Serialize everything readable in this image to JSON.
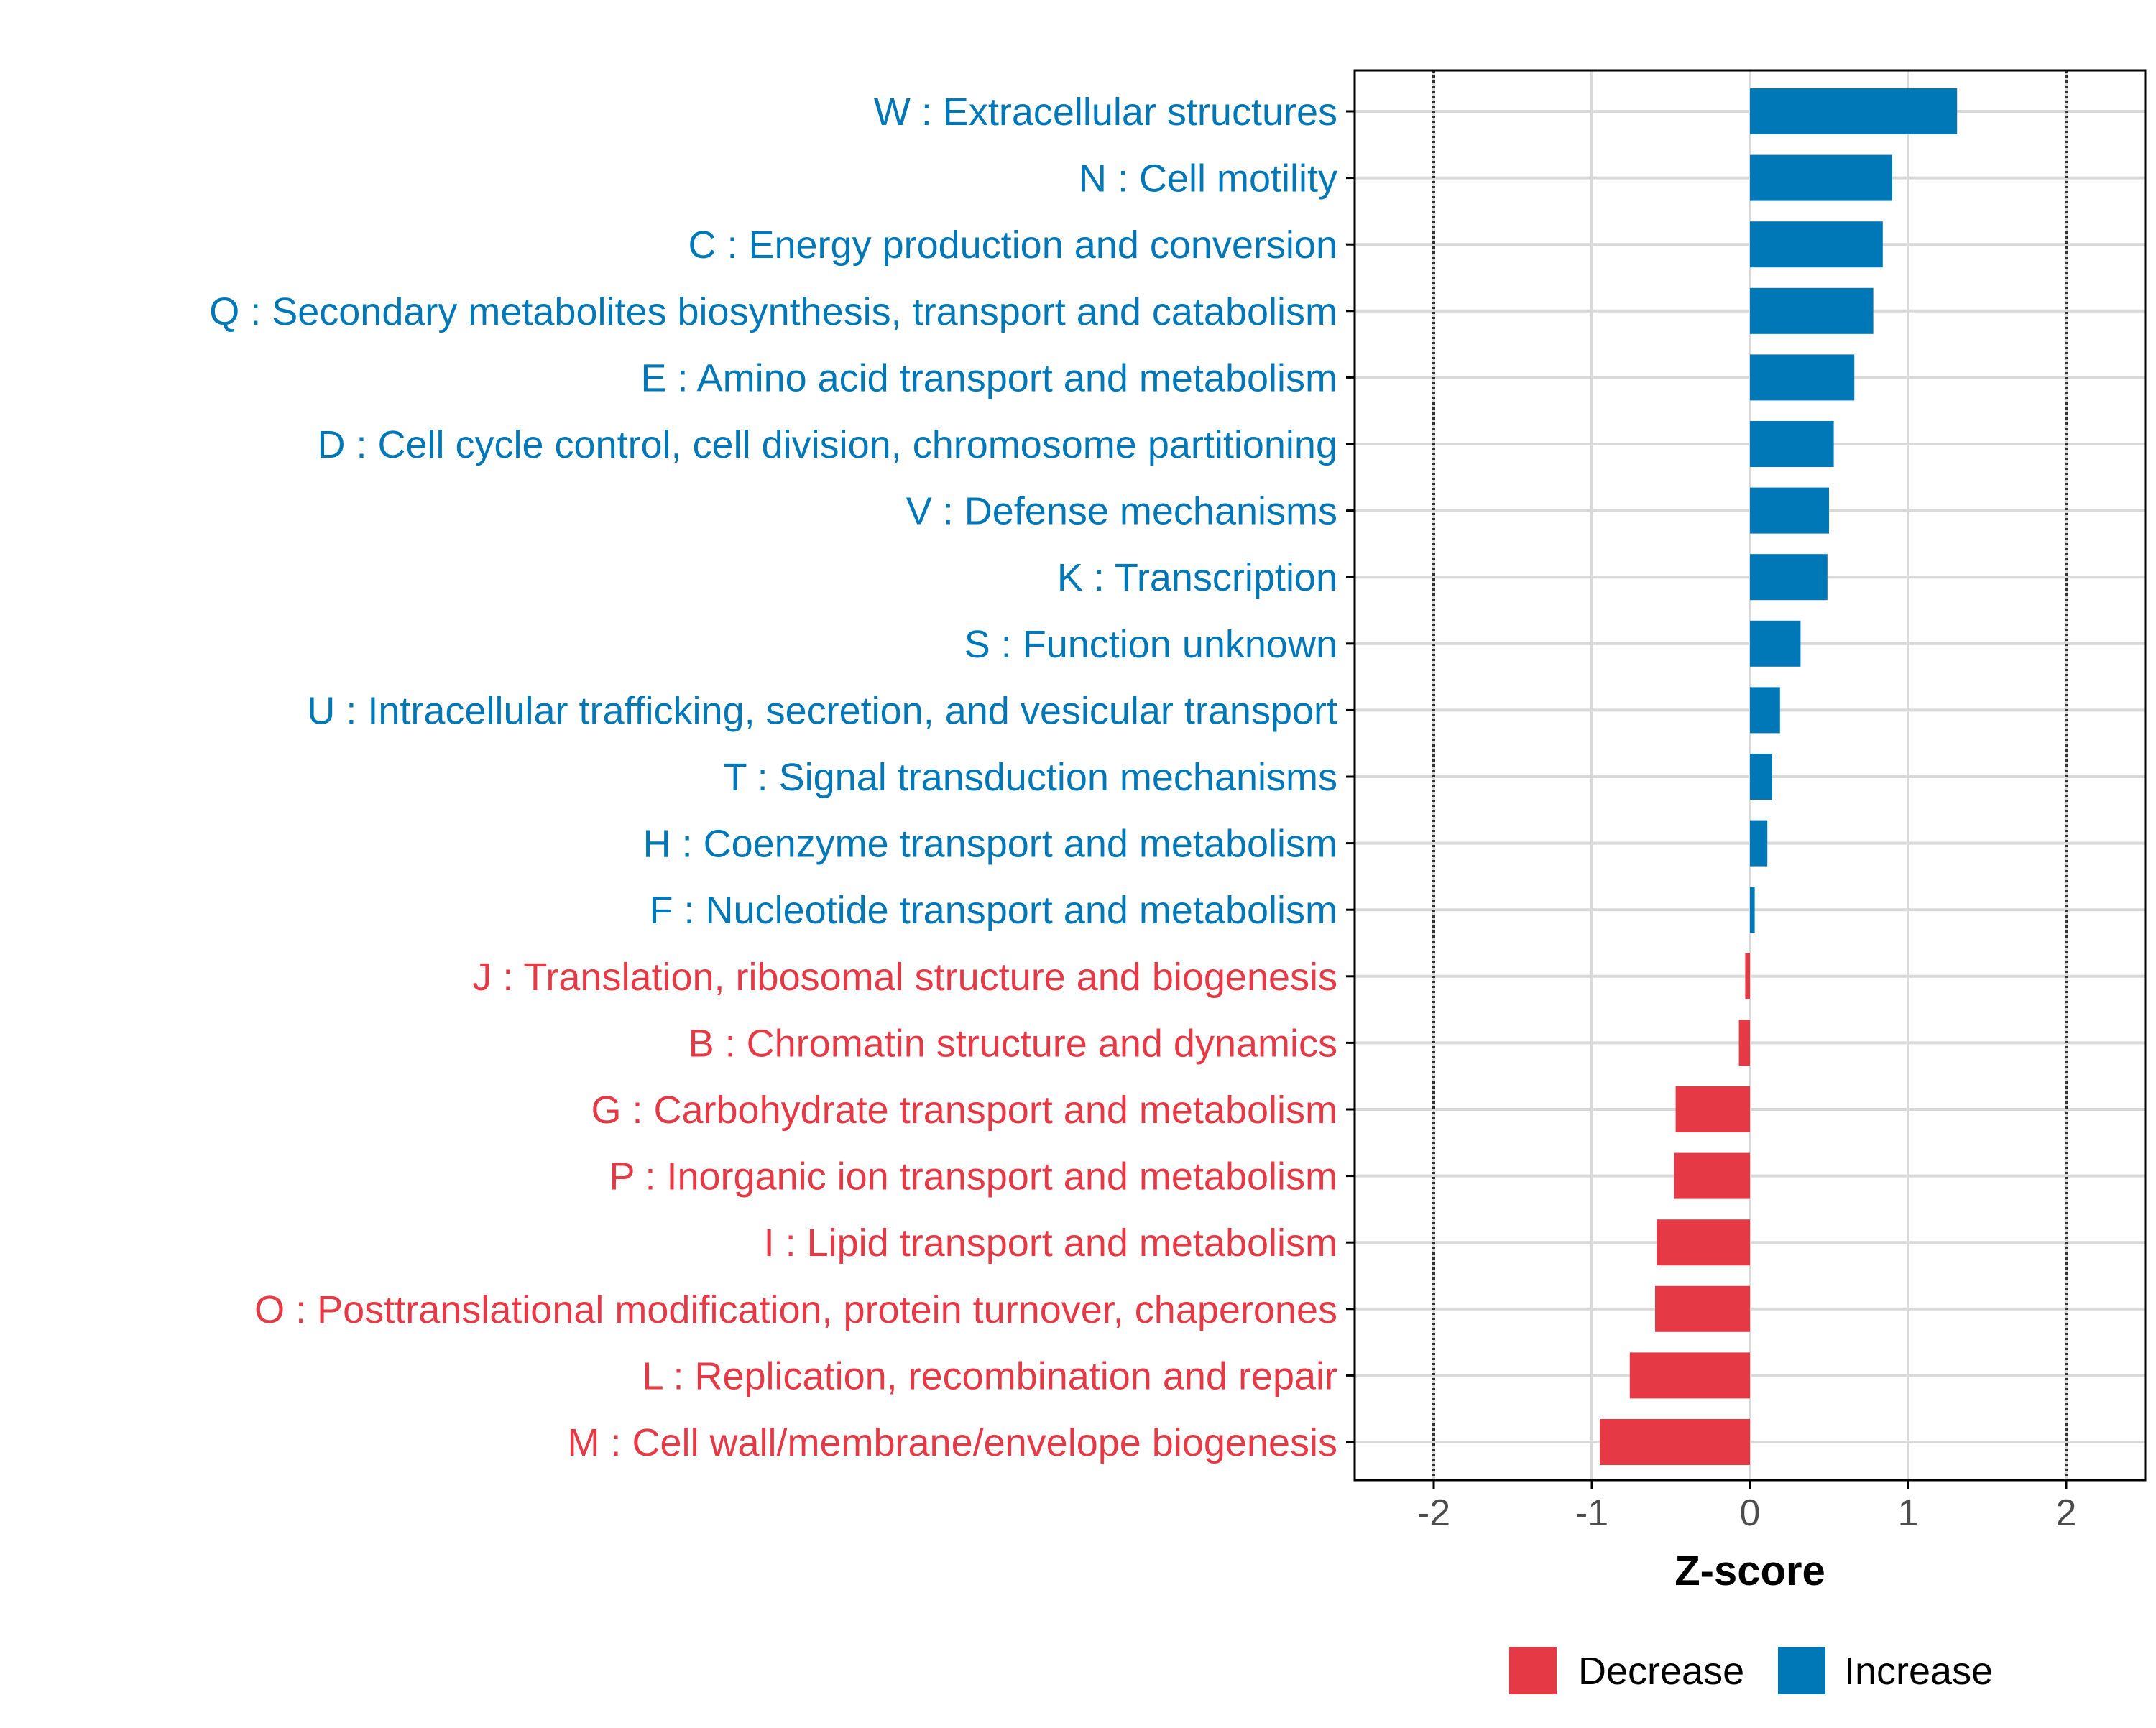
{
  "chart_data": {
    "type": "bar",
    "orientation": "horizontal",
    "xlabel": "Z-score",
    "xlim": [
      -2.5,
      2.5
    ],
    "xticks": [
      -2,
      -1,
      0,
      1,
      2
    ],
    "xtick_labels": [
      "-2",
      "-1",
      "0",
      "1",
      "2"
    ],
    "reference_lines": [
      -2,
      2
    ],
    "categories": [
      "W : Extracellular structures",
      "N : Cell motility",
      "C : Energy production and conversion",
      "Q : Secondary metabolites biosynthesis, transport and catabolism",
      "E : Amino acid transport and metabolism",
      "D : Cell cycle control, cell division, chromosome partitioning",
      "V : Defense mechanisms",
      "K : Transcription",
      "S : Function unknown",
      "U : Intracellular trafficking, secretion, and vesicular transport",
      "T : Signal transduction mechanisms",
      "H : Coenzyme transport and metabolism",
      "F : Nucleotide transport and metabolism",
      "J : Translation, ribosomal structure and biogenesis",
      "B : Chromatin structure and dynamics",
      "G : Carbohydrate transport and metabolism",
      "P : Inorganic ion transport and metabolism",
      "I : Lipid transport and metabolism",
      "O : Posttranslational modification, protein turnover, chaperones",
      "L : Replication, recombination and repair",
      "M : Cell wall/membrane/envelope biogenesis"
    ],
    "values": [
      1.31,
      0.9,
      0.84,
      0.78,
      0.66,
      0.53,
      0.5,
      0.49,
      0.32,
      0.19,
      0.14,
      0.11,
      0.03,
      -0.03,
      -0.07,
      -0.47,
      -0.48,
      -0.59,
      -0.6,
      -0.76,
      -0.95
    ],
    "legend": {
      "position": "bottom",
      "entries": [
        {
          "label": "Decrease",
          "color": "#E63946"
        },
        {
          "label": "Increase",
          "color": "#0077B6"
        }
      ]
    }
  },
  "colors": {
    "increase": "#0077B6",
    "decrease": "#E63946",
    "grid": "#d9d9d9",
    "axis": "#000000",
    "tick_text": "#4d4d4d"
  }
}
